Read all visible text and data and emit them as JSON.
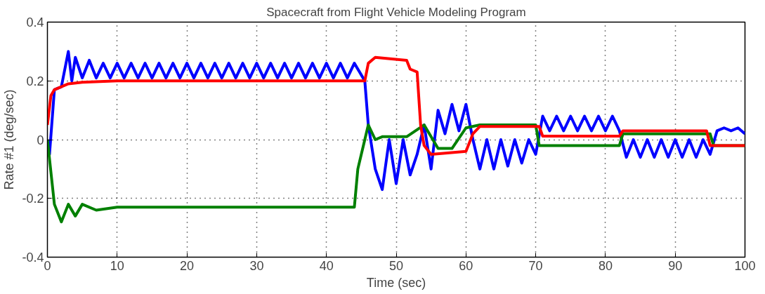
{
  "chart_data": {
    "type": "line",
    "title": "Spacecraft from Flight Vehicle Modeling Program",
    "xlabel": "Time (sec)",
    "ylabel": "Rate #1 (deg/sec)",
    "xlim": [
      0,
      100
    ],
    "xticks": [
      0,
      10,
      20,
      30,
      40,
      50,
      60,
      70,
      80,
      90,
      100
    ],
    "ylim": [
      -0.4,
      0.4
    ],
    "yticks": [
      -0.4,
      -0.2,
      0,
      0.2,
      0.4
    ],
    "grid": true,
    "line_style": "solid",
    "series": [
      {
        "color": "#0000ff",
        "x": [
          0,
          0.3,
          1,
          2,
          3,
          3.5,
          4,
          5,
          6,
          7,
          8,
          9,
          10,
          11,
          12,
          13,
          14,
          15,
          16,
          17,
          18,
          19,
          20,
          21,
          22,
          23,
          24,
          25,
          26,
          27,
          28,
          29,
          30,
          31,
          32,
          33,
          34,
          35,
          36,
          37,
          38,
          39,
          40,
          41,
          42,
          43,
          44,
          45,
          45.5,
          46,
          47,
          48,
          49,
          50,
          51,
          52,
          53,
          54,
          55,
          56,
          57,
          58,
          59,
          60,
          61,
          62,
          63,
          64,
          65,
          66,
          67,
          68,
          69,
          70,
          71,
          72,
          73,
          74,
          75,
          76,
          77,
          78,
          79,
          80,
          81,
          82,
          83,
          84,
          85,
          86,
          87,
          88,
          89,
          90,
          91,
          92,
          93,
          94,
          95,
          96,
          97,
          98,
          99,
          100
        ],
        "values": [
          0,
          -0.05,
          0.17,
          0.18,
          0.3,
          0.2,
          0.28,
          0.21,
          0.27,
          0.21,
          0.26,
          0.21,
          0.26,
          0.21,
          0.26,
          0.21,
          0.26,
          0.21,
          0.26,
          0.21,
          0.26,
          0.21,
          0.26,
          0.21,
          0.26,
          0.21,
          0.26,
          0.21,
          0.26,
          0.21,
          0.26,
          0.21,
          0.26,
          0.21,
          0.26,
          0.21,
          0.26,
          0.21,
          0.26,
          0.21,
          0.26,
          0.21,
          0.26,
          0.21,
          0.26,
          0.21,
          0.26,
          0.22,
          0.2,
          0.05,
          -0.1,
          -0.17,
          0,
          -0.15,
          0,
          -0.12,
          -0.05,
          0.05,
          -0.1,
          0.1,
          0.02,
          0.12,
          0.03,
          0.12,
          0,
          -0.1,
          0,
          -0.1,
          0,
          -0.09,
          0,
          -0.08,
          0,
          -0.05,
          0.08,
          0.03,
          0.08,
          0.03,
          0.08,
          0.03,
          0.08,
          0.03,
          0.08,
          0.03,
          0.08,
          0.03,
          -0.06,
          0,
          -0.06,
          0,
          -0.06,
          0,
          -0.06,
          0,
          -0.06,
          0,
          -0.06,
          0,
          -0.05,
          0.03,
          0.04,
          0.03,
          0.04,
          0.02
        ]
      },
      {
        "color": "#008000",
        "x": [
          0,
          1,
          2,
          3,
          4,
          5,
          7,
          10,
          44,
          44.5,
          45.5,
          46,
          47,
          48,
          51.5,
          54,
          56,
          58,
          60,
          62,
          70,
          70.5,
          82,
          82.5,
          95,
          95.5,
          100
        ],
        "values": [
          0,
          -0.22,
          -0.28,
          -0.22,
          -0.26,
          -0.22,
          -0.24,
          -0.23,
          -0.23,
          -0.1,
          0,
          0.05,
          0,
          0.01,
          0.01,
          0.05,
          -0.03,
          -0.03,
          0.04,
          0.05,
          0.05,
          -0.02,
          -0.02,
          0.02,
          0.02,
          -0.02,
          -0.02
        ]
      },
      {
        "color": "#ff0000",
        "x": [
          0,
          0.5,
          1,
          3,
          5,
          10,
          45.5,
          46,
          47,
          51.5,
          52,
          53,
          53.5,
          54,
          55,
          60,
          61,
          62,
          70.5,
          71,
          82,
          82.5,
          94.5,
          95,
          100
        ],
        "values": [
          0.05,
          0.15,
          0.17,
          0.19,
          0.195,
          0.2,
          0.2,
          0.26,
          0.28,
          0.27,
          0.24,
          0.23,
          0.05,
          -0.02,
          -0.05,
          -0.04,
          0.02,
          0.045,
          0.045,
          0.012,
          0.012,
          0.03,
          0.03,
          -0.02,
          -0.02
        ]
      }
    ]
  }
}
